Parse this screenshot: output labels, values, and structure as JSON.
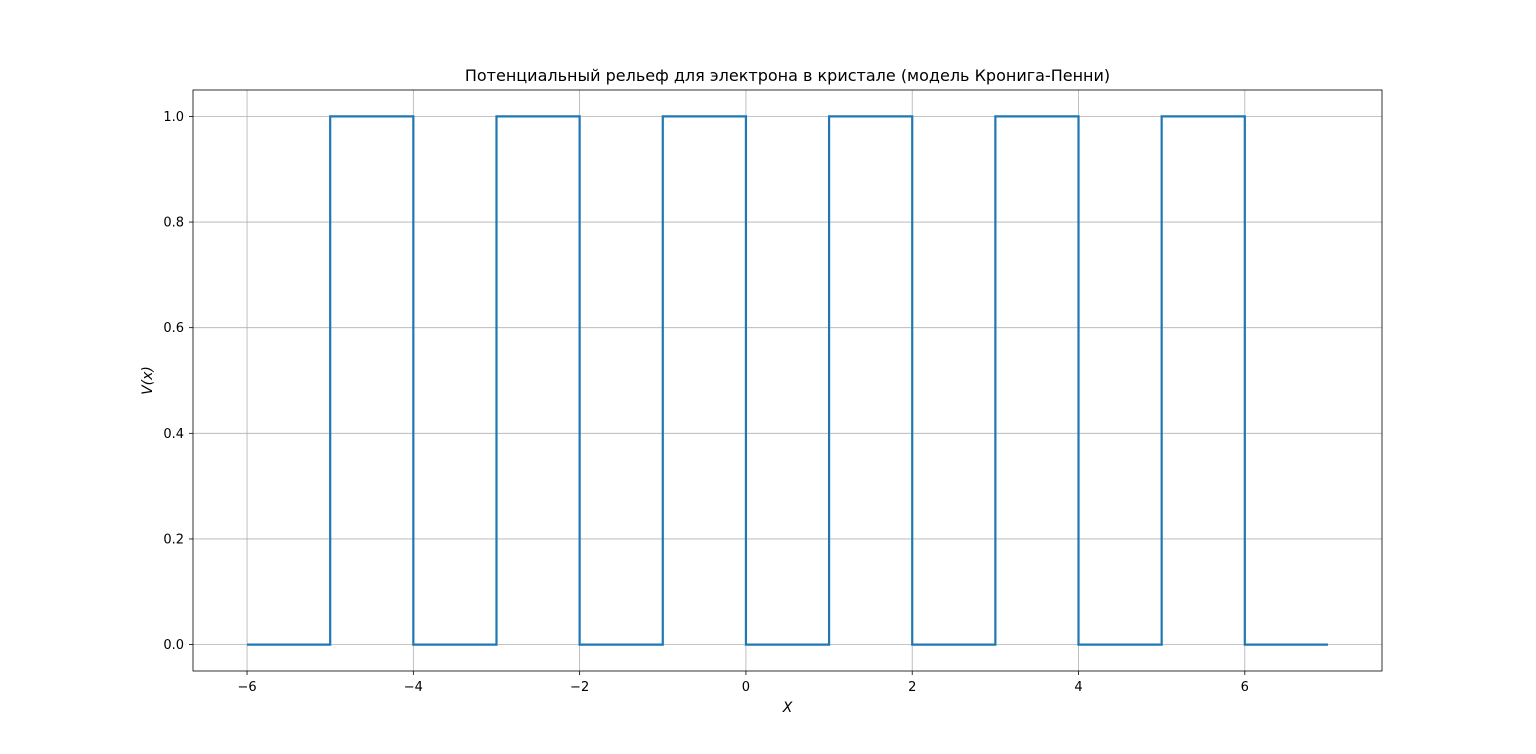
{
  "chart_data": {
    "type": "line",
    "title": "Потенциальный рельеф для электрона в кристале (модель Кронига-Пенни)",
    "xlabel": "X",
    "ylabel": "V(x)",
    "xlim": [
      -6.65,
      7.65
    ],
    "ylim": [
      -0.05,
      1.05
    ],
    "grid": true,
    "line_color": "#1f77b4",
    "x_ticks": [
      -6,
      -4,
      -2,
      0,
      2,
      4,
      6
    ],
    "x_tick_labels": [
      "−6",
      "−4",
      "−2",
      "0",
      "2",
      "4",
      "6"
    ],
    "y_ticks": [
      0.0,
      0.2,
      0.4,
      0.6,
      0.8,
      1.0
    ],
    "y_tick_labels": [
      "0.0",
      "0.2",
      "0.4",
      "0.6",
      "0.8",
      "1.0"
    ],
    "series": [
      {
        "x": [
          -6,
          -5,
          -5,
          -4,
          -4,
          -3,
          -3,
          -2,
          -2,
          -1,
          -1,
          0,
          0,
          1,
          1,
          2,
          2,
          3,
          3,
          4,
          4,
          5,
          5,
          6,
          6,
          7
        ],
        "y": [
          0,
          0,
          1,
          1,
          0,
          0,
          1,
          1,
          0,
          0,
          1,
          1,
          0,
          0,
          1,
          1,
          0,
          0,
          1,
          1,
          0,
          0,
          1,
          1,
          0,
          0
        ]
      }
    ]
  }
}
